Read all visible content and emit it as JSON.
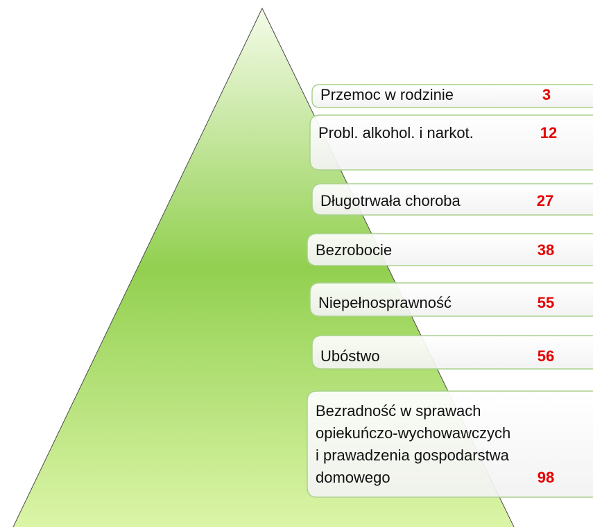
{
  "items": [
    {
      "lines": [
        "Przemoc w rodzinie"
      ],
      "value": 3
    },
    {
      "lines": [
        "Probl. alkohol. i narkot."
      ],
      "value": 12
    },
    {
      "lines": [
        "Długotrwała choroba"
      ],
      "value": 27
    },
    {
      "lines": [
        "Bezrobocie"
      ],
      "value": 38
    },
    {
      "lines": [
        "Niepełnosprawność"
      ],
      "value": 55
    },
    {
      "lines": [
        "Ubóstwo"
      ],
      "value": 56
    },
    {
      "lines": [
        "Bezradność w sprawach",
        "opiekuńczo-wychowawczych",
        "i prawadzenia gospodarstwa",
        "domowego"
      ],
      "value": 98
    }
  ]
}
